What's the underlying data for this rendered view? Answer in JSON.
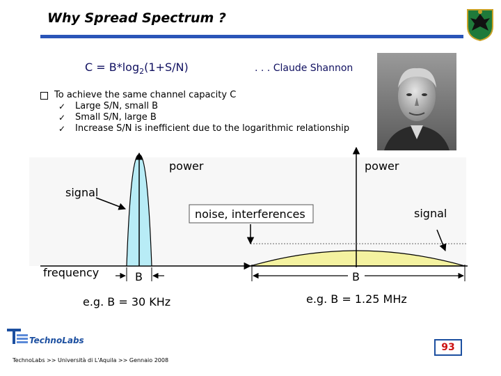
{
  "slide": {
    "title": "Why Spread Spectrum ?",
    "formula_prefix": "C = B*log",
    "formula_sub": "2",
    "formula_suffix": "(1+S/N)",
    "attribution": ". . .  Claude Shannon",
    "bullets": {
      "main": "To achieve the same channel capacity C",
      "items": [
        "Large S/N, small B",
        "Small S/N, large B",
        "Increase S/N is inefficient due to the logarithmic relationship"
      ]
    }
  },
  "diagram": {
    "left": {
      "power_label": "power",
      "signal_label": "signal",
      "frequency_label": "frequency",
      "bandwidth_label": "B",
      "example": "e.g. B = 30 KHz"
    },
    "right": {
      "power_label": "power",
      "noise_label": "noise, interferences",
      "signal_label": "signal",
      "bandwidth_label": "B",
      "example": "e.g. B = 1.25 MHz"
    },
    "colors": {
      "narrowband_fill": "#b8ecf6",
      "spread_fill": "#f4f2a0",
      "accent": "#1c4fa0"
    }
  },
  "footer": {
    "logo_text": "TechnoLabs",
    "text": "TechnoLabs >> Università di L'Aquila >> Gennaio 2008",
    "page_number": "93"
  }
}
